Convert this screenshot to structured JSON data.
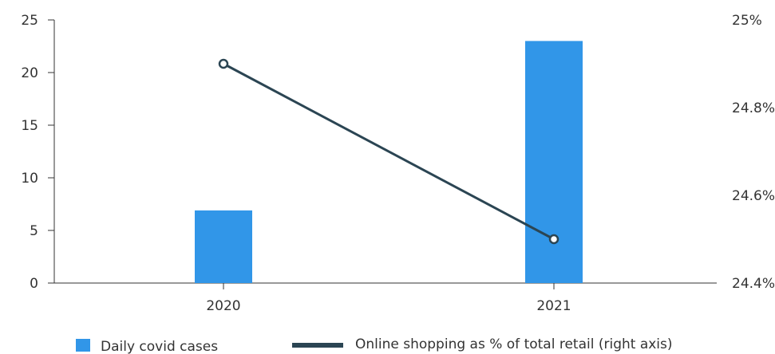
{
  "chart_data": {
    "type": "bar",
    "categories": [
      "2020",
      "2021"
    ],
    "series": [
      {
        "name": "Daily covid cases",
        "type": "bar",
        "axis": "left",
        "values": [
          6.9,
          23
        ],
        "color": "#3196e8"
      },
      {
        "name": "Online shopping as % of total retail (right axis)",
        "type": "line",
        "axis": "right",
        "values": [
          24.9,
          24.5
        ],
        "color": "#2b4553"
      }
    ],
    "left_axis": {
      "ylim": [
        0,
        25
      ],
      "ticks": [
        0,
        5,
        10,
        15,
        20,
        25
      ],
      "tick_labels": [
        "0",
        "5",
        "10",
        "15",
        "20",
        "25"
      ]
    },
    "right_axis": {
      "ylim": [
        24.4,
        25.0
      ],
      "ticks": [
        24.4,
        24.6,
        24.8,
        25.0
      ],
      "tick_labels": [
        "24.4%",
        "24.6%",
        "24.8%",
        "25%"
      ]
    },
    "grid": false,
    "legend": "bottom",
    "title": "",
    "xlabel": "",
    "ylabel": ""
  }
}
